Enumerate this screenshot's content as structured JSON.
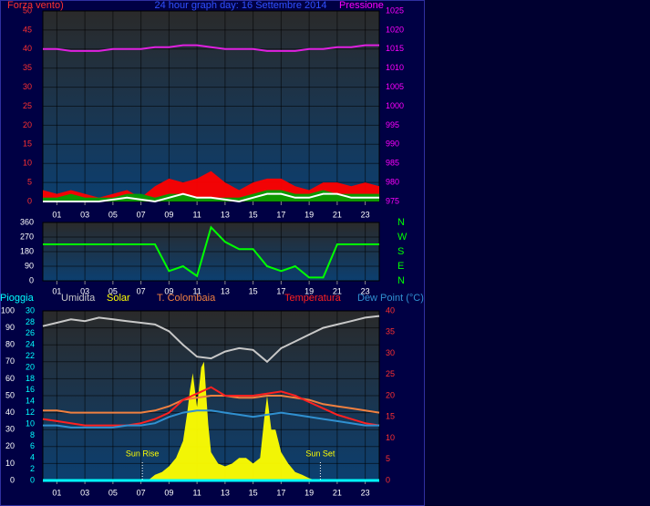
{
  "chart_data": [
    {
      "type": "line",
      "title": "24 hour graph day: 16 Settembre 2014",
      "ylabel": "Forza vento)",
      "y2label": "Pressione",
      "x": [
        0,
        1,
        2,
        3,
        4,
        5,
        6,
        7,
        8,
        9,
        10,
        11,
        12,
        13,
        14,
        15,
        16,
        17,
        18,
        19,
        20,
        21,
        22,
        23,
        24
      ],
      "xlim": [
        0,
        24
      ],
      "xticks": [
        {
          "value": 1,
          "label": "01"
        },
        {
          "value": 3,
          "label": "03"
        },
        {
          "value": 5,
          "label": "05"
        },
        {
          "value": 7,
          "label": "07"
        },
        {
          "value": 9,
          "label": "09"
        },
        {
          "value": 11,
          "label": "11"
        },
        {
          "value": 13,
          "label": "13"
        },
        {
          "value": 15,
          "label": "15"
        },
        {
          "value": 17,
          "label": "17"
        },
        {
          "value": 19,
          "label": "19"
        },
        {
          "value": 21,
          "label": "21"
        },
        {
          "value": 23,
          "label": "23"
        }
      ],
      "ylim": [
        0,
        50
      ],
      "yticks": [
        0,
        5,
        10,
        15,
        20,
        25,
        30,
        35,
        40,
        45,
        50
      ],
      "ycolor": "#ff3030",
      "y2lim": [
        975,
        1025
      ],
      "y2ticks": [
        975,
        980,
        985,
        990,
        995,
        1000,
        1005,
        1010,
        1015,
        1020,
        1025
      ],
      "y2color": "#ff00ff",
      "grid": true,
      "series": [
        {
          "color": "#ff0000",
          "fill": true,
          "values": [
            3,
            2,
            3,
            2,
            1,
            2,
            3,
            1,
            4,
            6,
            5,
            6,
            8,
            5,
            3,
            5,
            6,
            6,
            4,
            3,
            5,
            5,
            4,
            5,
            4
          ]
        },
        {
          "color": "#00a000",
          "fill": true,
          "values": [
            1,
            1,
            2,
            1,
            1,
            1,
            2,
            2,
            1,
            2,
            2,
            1,
            1,
            1,
            1,
            2,
            3,
            3,
            2,
            2,
            3,
            2,
            2,
            2,
            2
          ]
        },
        {
          "color": "#ffffff",
          "values": [
            0,
            0,
            0,
            0,
            0,
            0.5,
            1,
            0.5,
            0,
            1,
            2,
            1,
            1,
            0.5,
            0,
            1,
            2,
            2,
            1,
            1,
            2,
            2,
            1,
            1,
            1
          ]
        },
        {
          "color": "#e020e0",
          "axis": "y2",
          "values": [
            1015,
            1015,
            1014.5,
            1014.5,
            1014.5,
            1015,
            1015,
            1015,
            1015.5,
            1015.5,
            1016,
            1016,
            1015.5,
            1015,
            1015,
            1015,
            1014.5,
            1014.5,
            1014.5,
            1015,
            1015,
            1015.5,
            1015.5,
            1016,
            1016
          ]
        }
      ]
    },
    {
      "type": "line",
      "x": [
        0,
        1,
        2,
        3,
        4,
        5,
        6,
        7,
        8,
        9,
        10,
        11,
        12,
        13,
        14,
        15,
        16,
        17,
        18,
        19,
        20,
        21,
        22,
        23,
        24
      ],
      "xlim": [
        0,
        24
      ],
      "xticks": [
        {
          "value": 1,
          "label": "01"
        },
        {
          "value": 3,
          "label": "03"
        },
        {
          "value": 5,
          "label": "05"
        },
        {
          "value": 7,
          "label": "07"
        },
        {
          "value": 9,
          "label": "09"
        },
        {
          "value": 11,
          "label": "11"
        },
        {
          "value": 13,
          "label": "13"
        },
        {
          "value": 15,
          "label": "15"
        },
        {
          "value": 17,
          "label": "17"
        },
        {
          "value": 19,
          "label": "19"
        },
        {
          "value": 21,
          "label": "21"
        },
        {
          "value": 23,
          "label": "23"
        }
      ],
      "ylim": [
        0,
        360
      ],
      "yticks": [
        0,
        90,
        180,
        270,
        360
      ],
      "ycolor": "#ffffff",
      "y2lim": [
        0,
        360
      ],
      "y2ticks": [
        {
          "value": 360,
          "label": "N"
        },
        {
          "value": 270,
          "label": "W"
        },
        {
          "value": 180,
          "label": "S"
        },
        {
          "value": 90,
          "label": "E"
        },
        {
          "value": 0,
          "label": "N"
        }
      ],
      "y2color": "#00ff00",
      "grid": true,
      "series": [
        {
          "color": "#00ff00",
          "values": [
            225,
            225,
            225,
            225,
            225,
            225,
            225,
            225,
            225,
            60,
            90,
            30,
            330,
            240,
            195,
            195,
            90,
            60,
            90,
            20,
            20,
            225,
            225,
            225,
            225
          ]
        }
      ]
    },
    {
      "type": "line",
      "x": [
        0,
        1,
        2,
        3,
        4,
        5,
        6,
        7,
        8,
        9,
        10,
        11,
        12,
        13,
        14,
        15,
        16,
        17,
        18,
        19,
        20,
        21,
        22,
        23,
        24
      ],
      "xlim": [
        0,
        24
      ],
      "xticks": [
        {
          "value": 1,
          "label": "01"
        },
        {
          "value": 3,
          "label": "03"
        },
        {
          "value": 5,
          "label": "05"
        },
        {
          "value": 7,
          "label": "07"
        },
        {
          "value": 9,
          "label": "09"
        },
        {
          "value": 11,
          "label": "11"
        },
        {
          "value": 13,
          "label": "13"
        },
        {
          "value": 15,
          "label": "15"
        },
        {
          "value": 17,
          "label": "17"
        },
        {
          "value": 19,
          "label": "19"
        },
        {
          "value": 21,
          "label": "21"
        },
        {
          "value": 23,
          "label": "23"
        }
      ],
      "ylim": [
        0,
        100
      ],
      "yticks": [
        0,
        10,
        20,
        30,
        40,
        50,
        60,
        70,
        80,
        90,
        100
      ],
      "ycolor": "#ffffff",
      "y3lim": [
        0,
        30
      ],
      "y3ticks": [
        0,
        2,
        4,
        6,
        8,
        10,
        12,
        14,
        16,
        18,
        20,
        22,
        24,
        26,
        28,
        30
      ],
      "y3color": "#00ffff",
      "y2lim": [
        0,
        40
      ],
      "y2ticks": [
        0,
        5,
        10,
        15,
        20,
        25,
        30,
        35,
        40
      ],
      "y2color": "#ff3030",
      "grid": true,
      "series": [
        {
          "name": "Pioggia",
          "color": "#00ffff",
          "axis": "y3",
          "values": [
            0,
            0,
            0,
            0,
            0,
            0,
            0,
            0,
            0,
            0,
            0,
            0,
            0,
            0,
            0,
            0,
            0,
            0,
            0,
            0,
            0,
            0,
            0,
            0,
            0
          ]
        },
        {
          "name": "Umidita",
          "color": "#c8c8c8",
          "values": [
            91,
            93,
            95,
            94,
            96,
            95,
            94,
            93,
            92,
            88,
            80,
            73,
            72,
            76,
            78,
            77,
            70,
            78,
            82,
            86,
            90,
            92,
            94,
            96,
            97
          ]
        },
        {
          "name": "Solar",
          "color": "#ffff00",
          "axis": "y3",
          "fill": true,
          "x": [
            0,
            7.5,
            8,
            8.5,
            9,
            9.5,
            10,
            10.3,
            10.5,
            10.7,
            11,
            11.3,
            11.5,
            11.8,
            12,
            12.5,
            13,
            13.5,
            14,
            14.5,
            15,
            15.5,
            15.8,
            16,
            16.3,
            16.6,
            17,
            17.5,
            18,
            18.5,
            19,
            19.5,
            24
          ],
          "values": [
            0,
            0,
            1,
            1.5,
            2.5,
            4,
            7,
            12,
            16,
            19,
            13,
            20,
            21,
            10,
            5,
            3,
            2.5,
            3,
            4,
            4,
            3,
            4,
            11,
            15,
            9,
            9,
            5,
            3,
            1.5,
            1,
            0.4,
            0,
            0
          ]
        },
        {
          "name": "T. Colombaia",
          "color": "#f08040",
          "axis": "y2",
          "values": [
            16.5,
            16.5,
            16,
            16,
            16,
            16,
            16,
            16,
            16.5,
            17.5,
            19,
            19.5,
            20,
            20,
            19.5,
            19.5,
            20,
            20,
            19.5,
            19,
            18,
            17.5,
            17,
            16.5,
            16
          ]
        },
        {
          "name": "Temperatura",
          "color": "#ff2020",
          "axis": "y2",
          "values": [
            14.5,
            14,
            13.5,
            13,
            13,
            13,
            13,
            13.5,
            14.5,
            16,
            19,
            20.5,
            22,
            20,
            20,
            20,
            20.5,
            21,
            20,
            18.5,
            17,
            15.5,
            14.5,
            13.5,
            13
          ]
        },
        {
          "name": "Dew Point (°C)",
          "color": "#3090d0",
          "axis": "y2",
          "values": [
            13,
            13,
            12.5,
            12.5,
            12.5,
            12.5,
            13,
            13,
            13.5,
            15,
            16,
            16.5,
            16.5,
            16,
            15.5,
            15,
            15.5,
            16,
            15.5,
            15,
            14.5,
            14,
            13.5,
            13,
            13
          ]
        }
      ],
      "annotations": [
        {
          "text": "Sun Rise",
          "x": 7.1
        },
        {
          "text": "Sun Set",
          "x": 19.8
        }
      ]
    }
  ]
}
